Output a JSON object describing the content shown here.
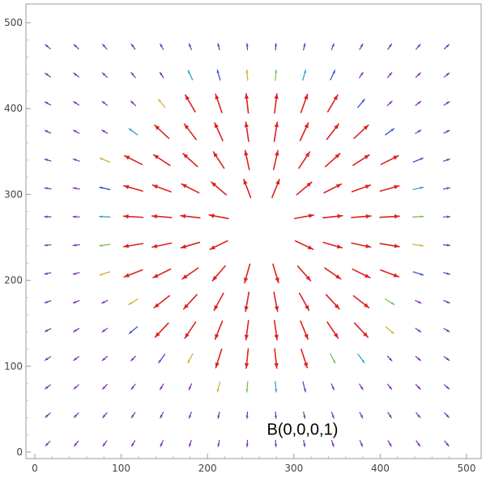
{
  "chart_data": {
    "type": "vector_field",
    "title": "",
    "xlabel": "",
    "ylabel": "",
    "xlim": [
      0,
      510
    ],
    "ylim": [
      -5,
      510
    ],
    "x_ticks": [
      0,
      100,
      200,
      300,
      400,
      500
    ],
    "y_ticks": [
      0,
      100,
      200,
      300,
      400,
      500
    ],
    "grid": false,
    "annotation": {
      "text": "B(0,0,0,1)",
      "x": 310,
      "y": 27
    },
    "field": {
      "grid_start": [
        15,
        10
      ],
      "grid_step": 33,
      "grid_count": [
        15,
        15
      ],
      "center": [
        262,
        265
      ],
      "empty_radius": 38
    },
    "colors": {
      "far": "#7b2fb5",
      "blue": "#3b4fd1",
      "teal": "#3a9fc8",
      "green": "#7fbf5a",
      "gold": "#d4b23a",
      "red": "#dd2020",
      "axis": "#999999"
    }
  }
}
